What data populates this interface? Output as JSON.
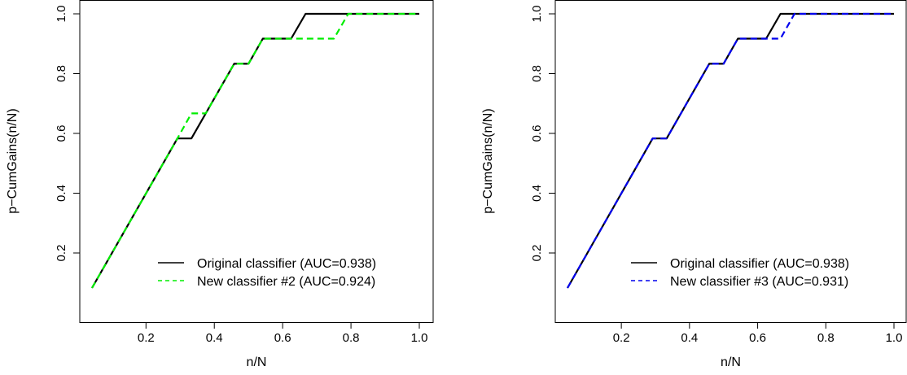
{
  "chart_data": [
    {
      "type": "line",
      "xlabel": "n/N",
      "ylabel": "p−CumGains(n/N)",
      "xlim": [
        0.042,
        1.0
      ],
      "ylim": [
        0.083,
        1.0
      ],
      "xticks": [
        "0.2",
        "0.4",
        "0.6",
        "0.8",
        "1.0"
      ],
      "yticks": [
        "0.2",
        "0.4",
        "0.6",
        "0.8",
        "1.0"
      ],
      "grid": false,
      "legend_position": "bottom-right",
      "series": [
        {
          "name": "Original classifier (AUC=0.938)",
          "color": "#000000",
          "dash": "solid",
          "x": [
            0.042,
            0.292,
            0.333,
            0.458,
            0.5,
            0.542,
            0.625,
            0.667,
            1.0
          ],
          "y": [
            0.083,
            0.583,
            0.583,
            0.833,
            0.833,
            0.917,
            0.917,
            1.0,
            1.0
          ]
        },
        {
          "name": "New classifier #2 (AUC=0.924)",
          "color": "#00ee00",
          "dash": "dashed",
          "x": [
            0.042,
            0.292,
            0.333,
            0.375,
            0.458,
            0.5,
            0.542,
            0.75,
            0.792,
            1.0
          ],
          "y": [
            0.083,
            0.583,
            0.667,
            0.667,
            0.833,
            0.833,
            0.917,
            0.917,
            1.0,
            1.0
          ]
        }
      ]
    },
    {
      "type": "line",
      "xlabel": "n/N",
      "ylabel": "p−CumGains(n/N)",
      "xlim": [
        0.042,
        1.0
      ],
      "ylim": [
        0.083,
        1.0
      ],
      "xticks": [
        "0.2",
        "0.4",
        "0.6",
        "0.8",
        "1.0"
      ],
      "yticks": [
        "0.2",
        "0.4",
        "0.6",
        "0.8",
        "1.0"
      ],
      "grid": false,
      "legend_position": "bottom-right",
      "series": [
        {
          "name": "Original classifier (AUC=0.938)",
          "color": "#000000",
          "dash": "solid",
          "x": [
            0.042,
            0.292,
            0.333,
            0.458,
            0.5,
            0.542,
            0.625,
            0.667,
            1.0
          ],
          "y": [
            0.083,
            0.583,
            0.583,
            0.833,
            0.833,
            0.917,
            0.917,
            1.0,
            1.0
          ]
        },
        {
          "name": "New classifier #3 (AUC=0.931)",
          "color": "#0000ee",
          "dash": "dashed",
          "x": [
            0.042,
            0.292,
            0.333,
            0.458,
            0.5,
            0.542,
            0.667,
            0.708,
            1.0
          ],
          "y": [
            0.083,
            0.583,
            0.583,
            0.833,
            0.833,
            0.917,
            0.917,
            1.0,
            1.0
          ]
        }
      ]
    }
  ]
}
